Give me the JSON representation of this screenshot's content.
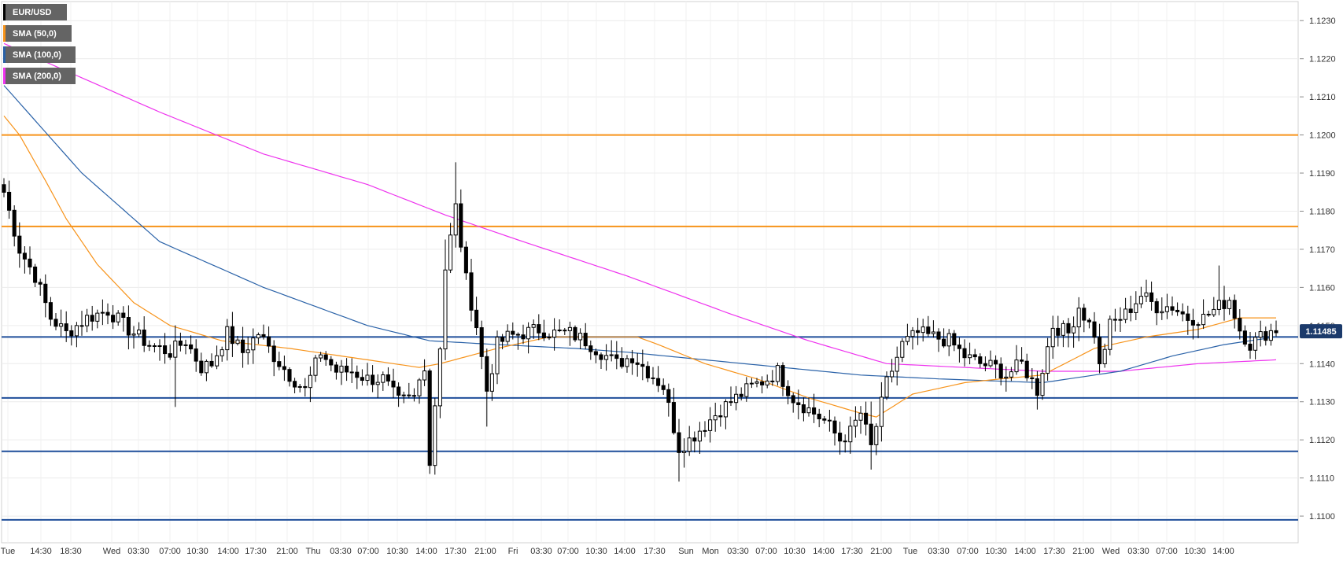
{
  "chart_data": {
    "type": "candlestick",
    "symbol": "EUR/USD",
    "legend": [
      {
        "label": "EUR/USD",
        "color": "#000000"
      },
      {
        "label": "SMA (50,0)",
        "color": "#f7931a"
      },
      {
        "label": "SMA (100,0)",
        "color": "#2a62a8"
      },
      {
        "label": "SMA (200,0)",
        "color": "#ee33ee"
      }
    ],
    "ylim": [
      1.1093,
      1.1235
    ],
    "y_ticks": [
      "1.1100",
      "1.1110",
      "1.1120",
      "1.1130",
      "1.1140",
      "1.1150",
      "1.1160",
      "1.1170",
      "1.1180",
      "1.1190",
      "1.1200",
      "1.1210",
      "1.1220",
      "1.1230"
    ],
    "x_ticks": [
      "Tue",
      "14:30",
      "18:30",
      "Wed",
      "03:30",
      "07:00",
      "10:30",
      "14:00",
      "17:30",
      "21:00",
      "Thu",
      "03:30",
      "07:00",
      "10:30",
      "14:00",
      "17:30",
      "21:00",
      "Fri",
      "03:30",
      "07:00",
      "10:30",
      "14:00",
      "17:30",
      "Sun",
      "Mon",
      "03:30",
      "07:00",
      "10:30",
      "14:00",
      "17:30",
      "21:00",
      "Tue",
      "03:30",
      "07:00",
      "10:30",
      "14:00",
      "17:30",
      "21:00",
      "Wed",
      "03:30",
      "07:00",
      "10:30",
      "14:00"
    ],
    "current_price": "1.11485",
    "grid": true,
    "horizontal_levels": [
      {
        "value": 1.12,
        "color": "#f7931a"
      },
      {
        "value": 1.1176,
        "color": "#f7931a"
      },
      {
        "value": 1.1147,
        "color": "#1f4e9a"
      },
      {
        "value": 1.1131,
        "color": "#1f4e9a"
      },
      {
        "value": 1.1117,
        "color": "#1f4e9a"
      },
      {
        "value": 1.1099,
        "color": "#1f4e9a"
      }
    ],
    "price_anchors": [
      [
        0,
        1.1185
      ],
      [
        3,
        1.117
      ],
      [
        6,
        1.1163
      ],
      [
        9,
        1.1152
      ],
      [
        12,
        1.1148
      ],
      [
        16,
        1.1152
      ],
      [
        20,
        1.1154
      ],
      [
        24,
        1.1149
      ],
      [
        28,
        1.1145
      ],
      [
        32,
        1.1143
      ],
      [
        35,
        1.1146
      ],
      [
        38,
        1.1139
      ],
      [
        40,
        1.114
      ],
      [
        43,
        1.1148
      ],
      [
        46,
        1.1143
      ],
      [
        49,
        1.1148
      ],
      [
        52,
        1.1142
      ],
      [
        55,
        1.1137
      ],
      [
        58,
        1.1133
      ],
      [
        61,
        1.1143
      ],
      [
        64,
        1.1138
      ],
      [
        67,
        1.1138
      ],
      [
        70,
        1.1136
      ],
      [
        73,
        1.1136
      ],
      [
        76,
        1.113
      ],
      [
        79,
        1.1131
      ],
      [
        81,
        1.114
      ],
      [
        82,
        1.1114
      ],
      [
        84,
        1.1145
      ],
      [
        85,
        1.1165
      ],
      [
        87,
        1.1181
      ],
      [
        89,
        1.1162
      ],
      [
        91,
        1.115
      ],
      [
        93,
        1.1133
      ],
      [
        95,
        1.1145
      ],
      [
        97,
        1.1147
      ],
      [
        100,
        1.1148
      ],
      [
        103,
        1.1149
      ],
      [
        106,
        1.1148
      ],
      [
        109,
        1.1148
      ],
      [
        112,
        1.1146
      ],
      [
        115,
        1.1143
      ],
      [
        118,
        1.114
      ],
      [
        121,
        1.1142
      ],
      [
        124,
        1.1138
      ],
      [
        127,
        1.1134
      ],
      [
        130,
        1.1118
      ],
      [
        132,
        1.112
      ],
      [
        135,
        1.1124
      ],
      [
        138,
        1.1128
      ],
      [
        141,
        1.1131
      ],
      [
        144,
        1.1134
      ],
      [
        147,
        1.1136
      ],
      [
        149,
        1.1138
      ],
      [
        152,
        1.1131
      ],
      [
        155,
        1.1128
      ],
      [
        158,
        1.1125
      ],
      [
        161,
        1.112
      ],
      [
        163,
        1.1122
      ],
      [
        165,
        1.1127
      ],
      [
        167,
        1.1118
      ],
      [
        170,
        1.1135
      ],
      [
        173,
        1.1145
      ],
      [
        176,
        1.1148
      ],
      [
        179,
        1.1147
      ],
      [
        182,
        1.1146
      ],
      [
        185,
        1.1142
      ],
      [
        188,
        1.114
      ],
      [
        191,
        1.1139
      ],
      [
        193,
        1.1137
      ],
      [
        196,
        1.114
      ],
      [
        199,
        1.1133
      ],
      [
        202,
        1.115
      ],
      [
        205,
        1.1148
      ],
      [
        207,
        1.1155
      ],
      [
        210,
        1.1148
      ],
      [
        211,
        1.1139
      ],
      [
        213,
        1.115
      ],
      [
        216,
        1.1153
      ],
      [
        219,
        1.1158
      ],
      [
        222,
        1.1155
      ],
      [
        225,
        1.1155
      ],
      [
        228,
        1.1152
      ],
      [
        231,
        1.1152
      ],
      [
        234,
        1.1155
      ],
      [
        236,
        1.1157
      ],
      [
        238,
        1.1149
      ],
      [
        240,
        1.1145
      ],
      [
        243,
        1.1148
      ],
      [
        245,
        1.1149
      ]
    ],
    "sma_50_anchors": [
      [
        0,
        1.1205
      ],
      [
        3,
        1.12
      ],
      [
        8,
        1.1188
      ],
      [
        12,
        1.1178
      ],
      [
        18,
        1.1166
      ],
      [
        25,
        1.1156
      ],
      [
        32,
        1.115
      ],
      [
        42,
        1.1146
      ],
      [
        55,
        1.1144
      ],
      [
        70,
        1.1141
      ],
      [
        80,
        1.1139
      ],
      [
        84,
        1.114
      ],
      [
        95,
        1.1144
      ],
      [
        105,
        1.1147
      ],
      [
        115,
        1.1147
      ],
      [
        122,
        1.1147
      ],
      [
        126,
        1.1145
      ],
      [
        135,
        1.114
      ],
      [
        145,
        1.1136
      ],
      [
        155,
        1.1131
      ],
      [
        165,
        1.1127
      ],
      [
        168,
        1.1126
      ],
      [
        175,
        1.1132
      ],
      [
        185,
        1.1135
      ],
      [
        192,
        1.1136
      ],
      [
        200,
        1.1137
      ],
      [
        210,
        1.1144
      ],
      [
        220,
        1.1147
      ],
      [
        230,
        1.1149
      ],
      [
        238,
        1.1152
      ],
      [
        245,
        1.1152
      ]
    ],
    "sma_100_anchors": [
      [
        0,
        1.1213
      ],
      [
        15,
        1.119
      ],
      [
        30,
        1.1172
      ],
      [
        50,
        1.116
      ],
      [
        70,
        1.115
      ],
      [
        82,
        1.1146
      ],
      [
        95,
        1.1145
      ],
      [
        110,
        1.1144
      ],
      [
        120,
        1.1143
      ],
      [
        135,
        1.1141
      ],
      [
        150,
        1.1139
      ],
      [
        165,
        1.1137
      ],
      [
        180,
        1.1136
      ],
      [
        200,
        1.1135
      ],
      [
        215,
        1.1138
      ],
      [
        225,
        1.1142
      ],
      [
        235,
        1.1145
      ],
      [
        245,
        1.1147
      ]
    ],
    "sma_200_anchors": [
      [
        0,
        1.1224
      ],
      [
        10,
        1.1218
      ],
      [
        30,
        1.1206
      ],
      [
        50,
        1.1195
      ],
      [
        70,
        1.1187
      ],
      [
        85,
        1.1179
      ],
      [
        100,
        1.1172
      ],
      [
        120,
        1.1163
      ],
      [
        140,
        1.1153
      ],
      [
        155,
        1.1146
      ],
      [
        170,
        1.114
      ],
      [
        185,
        1.1139
      ],
      [
        200,
        1.1138
      ],
      [
        215,
        1.1138
      ],
      [
        230,
        1.114
      ],
      [
        245,
        1.1141
      ]
    ]
  }
}
